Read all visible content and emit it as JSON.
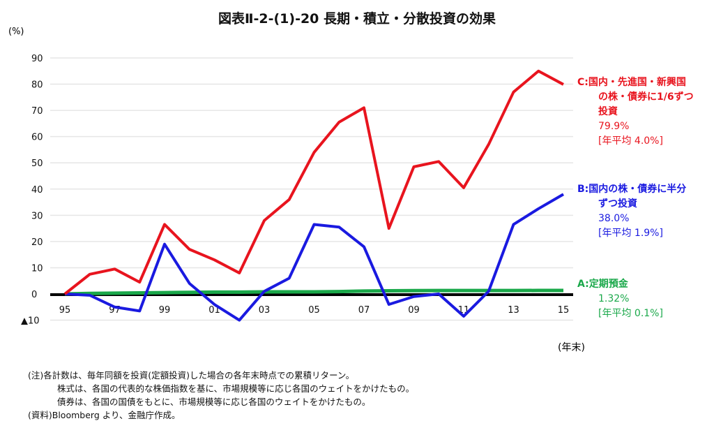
{
  "title": "図表Ⅱ-2-(1)-20 長期・積立・分散投資の効果",
  "unit_label": "(%)",
  "year_end_label": "(年末)",
  "chart_data": {
    "type": "line",
    "title": "図表Ⅱ-2-(1)-20 長期・積立・分散投資の効果",
    "ylabel": "(%)",
    "xlabel": "(年末)",
    "ylim": [
      -10,
      90
    ],
    "yticks": [
      90,
      80,
      70,
      60,
      50,
      40,
      30,
      20,
      10,
      0,
      -10
    ],
    "ytick_labels": [
      "90",
      "80",
      "70",
      "60",
      "50",
      "40",
      "30",
      "20",
      "10",
      "0",
      "▲10"
    ],
    "x": [
      1995,
      1996,
      1997,
      1998,
      1999,
      2000,
      2001,
      2002,
      2003,
      2004,
      2005,
      2006,
      2007,
      2008,
      2009,
      2010,
      2011,
      2012,
      2013,
      2014,
      2015
    ],
    "xtick_labels": [
      "95",
      "97",
      "99",
      "01",
      "03",
      "05",
      "07",
      "09",
      "11",
      "13",
      "15"
    ],
    "grid": true,
    "series": [
      {
        "name": "C",
        "color": "#e8141e",
        "values": [
          0,
          7.5,
          9.5,
          4.5,
          26.5,
          17,
          13,
          8,
          28,
          36,
          54,
          65.5,
          71,
          25,
          48.5,
          50.5,
          40.5,
          57,
          77,
          85,
          79.9
        ]
      },
      {
        "name": "B",
        "color": "#1a1ae0",
        "values": [
          0,
          -0.5,
          -5,
          -6.5,
          19,
          4,
          -4,
          -10,
          1,
          6,
          26.5,
          25.5,
          18,
          -4,
          -1,
          0,
          -8.5,
          1,
          26.5,
          32.5,
          38
        ]
      },
      {
        "name": "A",
        "color": "#1aa84a",
        "values": [
          0,
          0.2,
          0.3,
          0.4,
          0.5,
          0.6,
          0.7,
          0.7,
          0.8,
          0.8,
          0.8,
          0.9,
          1.1,
          1.2,
          1.25,
          1.3,
          1.3,
          1.3,
          1.3,
          1.32,
          1.32
        ]
      }
    ]
  },
  "legend": {
    "c": {
      "lines": [
        "C:国内・先進国・新興国",
        "の株・債券に1/6ずつ",
        "投資"
      ],
      "total": "79.9%",
      "avg": "[年平均 4.0%]"
    },
    "b": {
      "lines": [
        "B:国内の株・債券に半分",
        "ずつ投資"
      ],
      "total": "38.0%",
      "avg": "[年平均 1.9%]"
    },
    "a": {
      "lines": [
        "A:定期預金"
      ],
      "total": "1.32%",
      "avg": "[年平均 0.1%]"
    }
  },
  "notes": [
    "(注)各計数は、毎年同額を投資(定額投資)した場合の各年末時点での累積リターン。",
    "株式は、各国の代表的な株価指数を基に、市場規模等に応じ各国のウェイトをかけたもの。",
    "債券は、各国の国債をもとに、市場規模等に応じ各国のウェイトをかけたもの。",
    "(資料)Bloomberg より、金融庁作成。"
  ]
}
